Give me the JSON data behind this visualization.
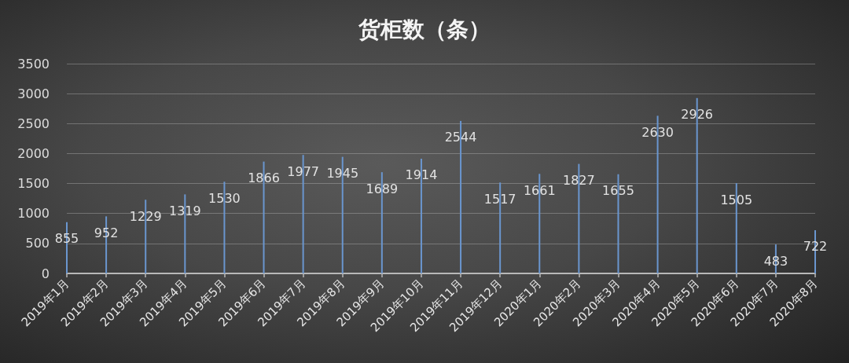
{
  "chart_data": {
    "type": "bar",
    "title": "货柜数（条）",
    "categories": [
      "2019年1月",
      "2019年2月",
      "2019年3月",
      "2019年4月",
      "2019年5月",
      "2019年6月",
      "2019年7月",
      "2019年8月",
      "2019年9月",
      "2019年10月",
      "2019年11月",
      "2019年12月",
      "2020年1月",
      "2020年2月",
      "2020年3月",
      "2020年4月",
      "2020年5月",
      "2020年6月",
      "2020年7月",
      "2020年8月"
    ],
    "values": [
      855,
      952,
      1229,
      1319,
      1530,
      1866,
      1977,
      1945,
      1689,
      1914,
      2544,
      1517,
      1661,
      1827,
      1655,
      2630,
      2926,
      1505,
      483,
      722
    ],
    "color": "#6a96cf",
    "data_labels": true,
    "ylim": [
      0,
      3500
    ],
    "yticks": [
      0,
      500,
      1000,
      1500,
      2000,
      2500,
      3000,
      3500
    ],
    "grid": "y"
  }
}
